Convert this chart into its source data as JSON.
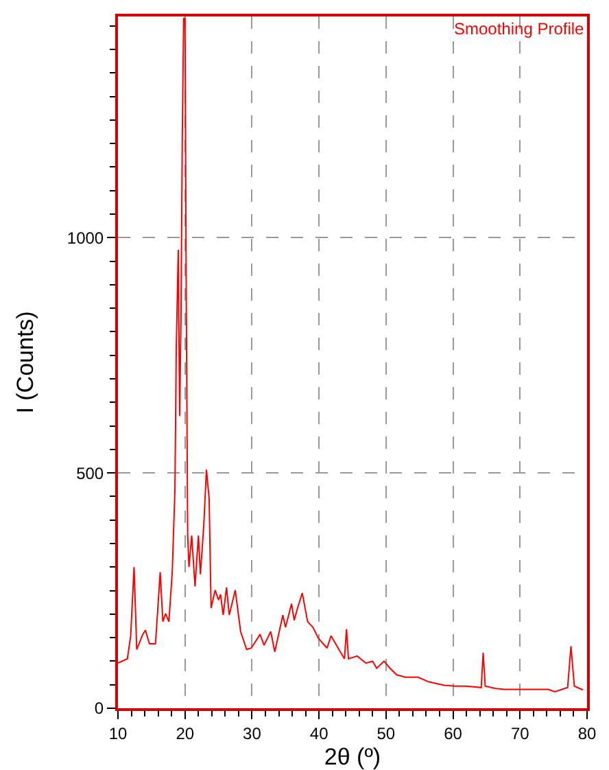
{
  "chart_data": {
    "type": "line",
    "xlabel": "2θ (º)",
    "ylabel": "I (Counts)",
    "xlim": [
      10,
      80
    ],
    "xticks": [
      10,
      20,
      30,
      40,
      50,
      60,
      70,
      80
    ],
    "ylim": [
      0,
      1470
    ],
    "yticks": [
      0,
      500,
      1000
    ],
    "grid": true,
    "marker": "none",
    "line_style": "solid",
    "series": [
      {
        "name": "Smoothing Profile",
        "color": "#ff0000",
        "x": [
          10,
          11.4,
          11.9,
          12.4,
          12.8,
          13.7,
          14.1,
          14.7,
          15.6,
          16.3,
          16.7,
          17.1,
          17.6,
          18.1,
          18.5,
          18.7,
          19.0,
          19.2,
          19.4,
          19.6,
          19.8,
          20.0,
          20.2,
          20.4,
          20.6,
          21.0,
          21.5,
          22.0,
          22.3,
          22.8,
          23.2,
          23.6,
          23.9,
          24.5,
          25.0,
          25.3,
          25.7,
          26.2,
          26.6,
          27.5,
          28.3,
          29.2,
          29.9,
          31.2,
          31.8,
          32.8,
          33.4,
          34.6,
          35.0,
          35.9,
          36.3,
          36.8,
          37.5,
          38.3,
          39.1,
          39.9,
          41.2,
          41.8,
          42.8,
          43.8,
          44.1,
          44.4,
          45.7,
          47.0,
          48.0,
          48.6,
          49.7,
          50.6,
          51.6,
          52.9,
          54.8,
          56.4,
          58.7,
          60.3,
          61.9,
          64.2,
          64.5,
          64.8,
          66.4,
          67.7,
          70.3,
          74.2,
          75.2,
          77.1,
          77.6,
          78.1,
          79.4
        ],
        "values": [
          96,
          105,
          154,
          300,
          125,
          157,
          166,
          137,
          137,
          289,
          184,
          201,
          184,
          289,
          464,
          767,
          974,
          621,
          825,
          1213,
          1466,
          1466,
          854,
          367,
          300,
          367,
          259,
          367,
          285,
          388,
          507,
          446,
          213,
          251,
          230,
          242,
          198,
          257,
          198,
          251,
          163,
          125,
          128,
          157,
          134,
          163,
          120,
          198,
          172,
          222,
          187,
          213,
          245,
          184,
          172,
          149,
          128,
          154,
          129,
          105,
          168,
          105,
          111,
          96,
          100,
          85,
          100,
          85,
          71,
          66,
          66,
          56,
          49,
          47,
          47,
          44,
          118,
          47,
          42,
          40,
          40,
          40,
          35,
          44,
          132,
          47,
          39
        ]
      }
    ]
  }
}
